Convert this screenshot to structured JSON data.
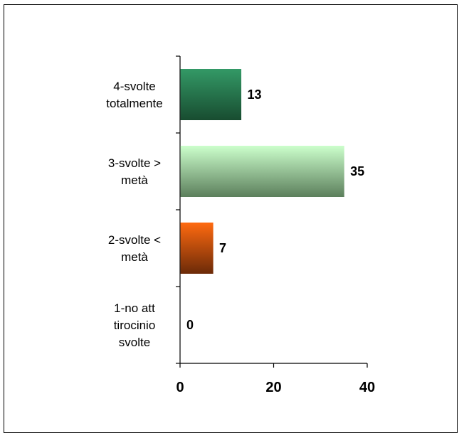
{
  "chart_data": {
    "type": "bar",
    "orientation": "horizontal",
    "categories": [
      "1-no att tirocinio svolte",
      "2-svolte < metà",
      "3-svolte > metà",
      "4-svolte totalmente"
    ],
    "category_label_lines": [
      [
        "1-no att",
        "tirocinio",
        "svolte"
      ],
      [
        "2-svolte <",
        "metà"
      ],
      [
        "3-svolte >",
        "metà"
      ],
      [
        "4-svolte",
        "totalmente"
      ]
    ],
    "values": [
      0,
      7,
      35,
      13
    ],
    "data_labels": [
      "0",
      "7",
      "35",
      "13"
    ],
    "bar_gradients": [
      {
        "top": "#1f5a34",
        "bottom": "#1f5a34"
      },
      {
        "top": "#ff6a10",
        "bottom": "#6b2a08"
      },
      {
        "top": "#ccffcc",
        "bottom": "#5c7f5c"
      },
      {
        "top": "#339966",
        "bottom": "#184c30"
      }
    ],
    "xlim": [
      0,
      40
    ],
    "xticks": [
      0,
      20,
      40
    ],
    "xtick_labels": [
      "0",
      "20",
      "40"
    ],
    "title": "",
    "xlabel": "",
    "ylabel": "",
    "grid": false,
    "legend": "none"
  }
}
